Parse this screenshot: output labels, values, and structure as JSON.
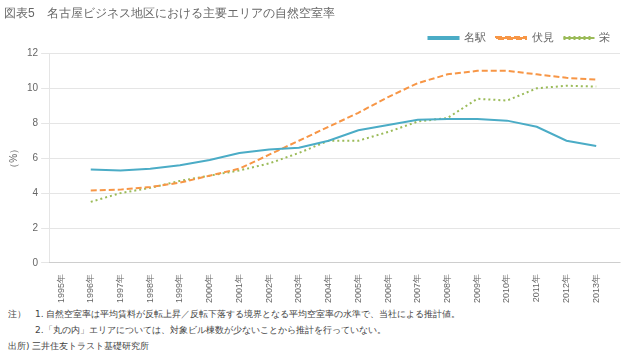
{
  "chart_data": {
    "type": "line",
    "title": "図表5　名古屋ビジネス地区における主要エリアの自然空室率",
    "y_label": "（%）",
    "x": [
      1995,
      1996,
      1997,
      1998,
      1999,
      2000,
      2001,
      2002,
      2003,
      2004,
      2005,
      2006,
      2007,
      2008,
      2009,
      2010,
      2011,
      2012,
      2013
    ],
    "series": [
      {
        "name": "名駅",
        "color": "#4bacc6",
        "line_style": "solid",
        "values": [
          null,
          5.35,
          5.3,
          5.4,
          5.6,
          5.9,
          6.3,
          6.5,
          6.6,
          7.0,
          7.6,
          7.9,
          8.2,
          8.25,
          8.25,
          8.15,
          7.8,
          7.0,
          6.7
        ]
      },
      {
        "name": "伏見",
        "color": "#f79646",
        "line_style": "dashed",
        "values": [
          null,
          4.15,
          4.2,
          4.35,
          4.6,
          5.0,
          5.4,
          6.2,
          7.0,
          7.8,
          8.6,
          9.5,
          10.3,
          10.8,
          11.0,
          11.0,
          10.8,
          10.6,
          10.5
        ]
      },
      {
        "name": "栄",
        "color": "#9bbb59",
        "line_style": "dotted",
        "values": [
          null,
          3.5,
          4.0,
          4.3,
          4.7,
          5.0,
          5.3,
          5.7,
          6.3,
          7.0,
          7.0,
          7.5,
          8.1,
          8.3,
          9.4,
          9.3,
          10.0,
          10.15,
          10.1
        ]
      }
    ],
    "xlim": [
      1994.6,
      2013.8
    ],
    "xticks": [
      {
        "value": 1995,
        "label": "1995年"
      },
      {
        "value": 1996,
        "label": "1996年"
      },
      {
        "value": 1997,
        "label": "1997年"
      },
      {
        "value": 1998,
        "label": "1998年"
      },
      {
        "value": 1999,
        "label": "1999年"
      },
      {
        "value": 2000,
        "label": "2000年"
      },
      {
        "value": 2001,
        "label": "2001年"
      },
      {
        "value": 2002,
        "label": "2002年"
      },
      {
        "value": 2003,
        "label": "2003年"
      },
      {
        "value": 2004,
        "label": "2004年"
      },
      {
        "value": 2005,
        "label": "2005年"
      },
      {
        "value": 2006,
        "label": "2006年"
      },
      {
        "value": 2007,
        "label": "2007年"
      },
      {
        "value": 2008,
        "label": "2008年"
      },
      {
        "value": 2009,
        "label": "2009年"
      },
      {
        "value": 2010,
        "label": "2010年"
      },
      {
        "value": 2011,
        "label": "2011年"
      },
      {
        "value": 2012,
        "label": "2012年"
      },
      {
        "value": 2013,
        "label": "2013年"
      }
    ],
    "ylim": [
      0,
      12
    ],
    "yticks": [
      0,
      2,
      4,
      6,
      8,
      10,
      12
    ],
    "grid": "y",
    "legend": "upper right",
    "annotations": [
      "注）　1. 自然空室率は平均賃料が反転上昇／反転下落する境界となる平均空室率の水準で、当社による推計値。",
      "　　　2.「丸の内」エリアについては、対象ビル棟数が少ないことから推計を行っていない。",
      "出所) 三井住友トラスト基礎研究所"
    ]
  }
}
